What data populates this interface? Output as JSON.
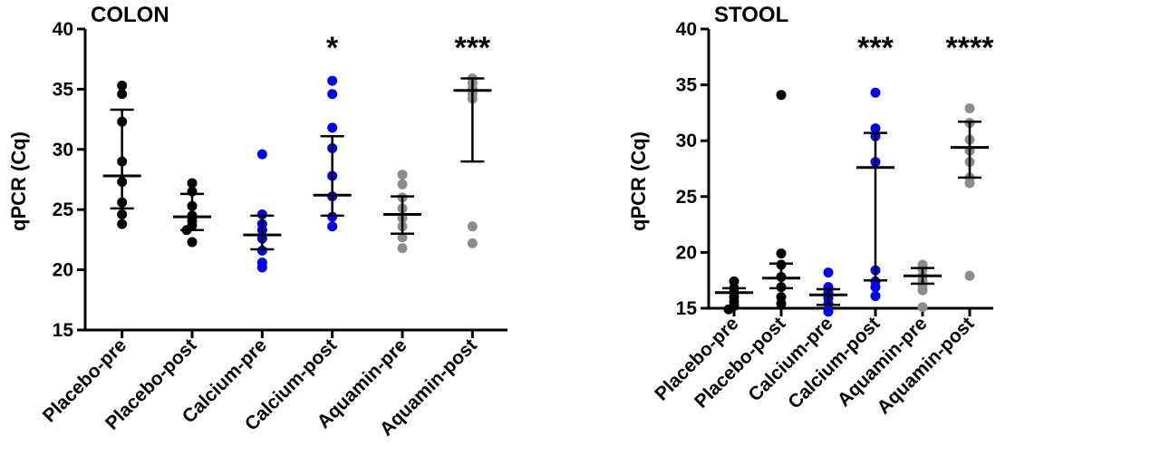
{
  "chart_data": [
    {
      "type": "scatter",
      "title": "COLON",
      "xlabel": "",
      "ylabel": "qPCR (Cq)",
      "ylim": [
        15,
        40
      ],
      "yticks": [
        "15",
        "20",
        "25",
        "30",
        "35",
        "40"
      ],
      "categories": [
        "Placebo-pre",
        "Placebo-post",
        "Calcium-pre",
        "Calcium-post",
        "Aquamin-pre",
        "Aquamin-post"
      ],
      "colors": [
        "#000000",
        "#000000",
        "#0000ee",
        "#0000ee",
        "#8c8c8c",
        "#8c8c8c"
      ],
      "points": [
        [
          35.3,
          34.6,
          32.3,
          29.0,
          27.3,
          25.6,
          24.6,
          23.8
        ],
        [
          27.2,
          26.5,
          25.3,
          24.5,
          24.1,
          23.7,
          23.3,
          22.3
        ],
        [
          29.6,
          24.6,
          23.8,
          23.3,
          22.6,
          21.6,
          20.6,
          20.2
        ],
        [
          35.7,
          34.6,
          31.8,
          30.1,
          27.8,
          26.1,
          24.4,
          23.6
        ],
        [
          27.9,
          27.1,
          26.0,
          25.1,
          24.3,
          23.6,
          22.7,
          21.8
        ],
        [
          35.9,
          35.5,
          35.0,
          34.6,
          34.2,
          23.6,
          22.2
        ]
      ],
      "median": [
        27.8,
        24.4,
        22.9,
        26.2,
        24.6,
        34.9
      ],
      "q1": [
        25.1,
        23.3,
        21.7,
        24.5,
        23.0,
        29.0
      ],
      "q3": [
        33.3,
        26.3,
        24.5,
        31.1,
        26.1,
        35.9
      ],
      "significance": [
        "",
        "",
        "",
        "*",
        "",
        "***"
      ]
    },
    {
      "type": "scatter",
      "title": "STOOL",
      "xlabel": "",
      "ylabel": "qPCR (Cq)",
      "ylim": [
        15,
        40
      ],
      "yticks": [
        "15",
        "20",
        "25",
        "30",
        "35",
        "40"
      ],
      "categories": [
        "Placebo-pre",
        "Placebo-post",
        "Calcium-pre",
        "Calcium-post",
        "Aquamin-pre",
        "Aquamin-post"
      ],
      "colors": [
        "#000000",
        "#000000",
        "#0000ee",
        "#0000ee",
        "#8c8c8c",
        "#8c8c8c"
      ],
      "points": [
        [
          17.4,
          16.8,
          16.4,
          16.0,
          15.6,
          15.2,
          14.9
        ],
        [
          34.1,
          19.9,
          18.9,
          17.8,
          16.9,
          16.0,
          15.4
        ],
        [
          18.2,
          16.9,
          16.4,
          15.9,
          15.4,
          14.7
        ],
        [
          34.3,
          31.1,
          30.4,
          28.1,
          18.4,
          17.4,
          16.9,
          16.1
        ],
        [
          18.9,
          18.5,
          17.9,
          17.5,
          17.0,
          16.6,
          15.1
        ],
        [
          32.9,
          31.6,
          30.1,
          29.1,
          28.1,
          26.7,
          26.2,
          17.9
        ]
      ],
      "median": [
        16.4,
        17.7,
        16.2,
        27.6,
        17.9,
        29.4
      ],
      "q1": [
        15.0,
        16.8,
        15.3,
        17.5,
        17.2,
        26.7
      ],
      "q3": [
        16.8,
        19.0,
        16.7,
        30.7,
        18.6,
        31.7
      ],
      "significance": [
        "",
        "",
        "",
        "***",
        "",
        "****"
      ]
    }
  ]
}
